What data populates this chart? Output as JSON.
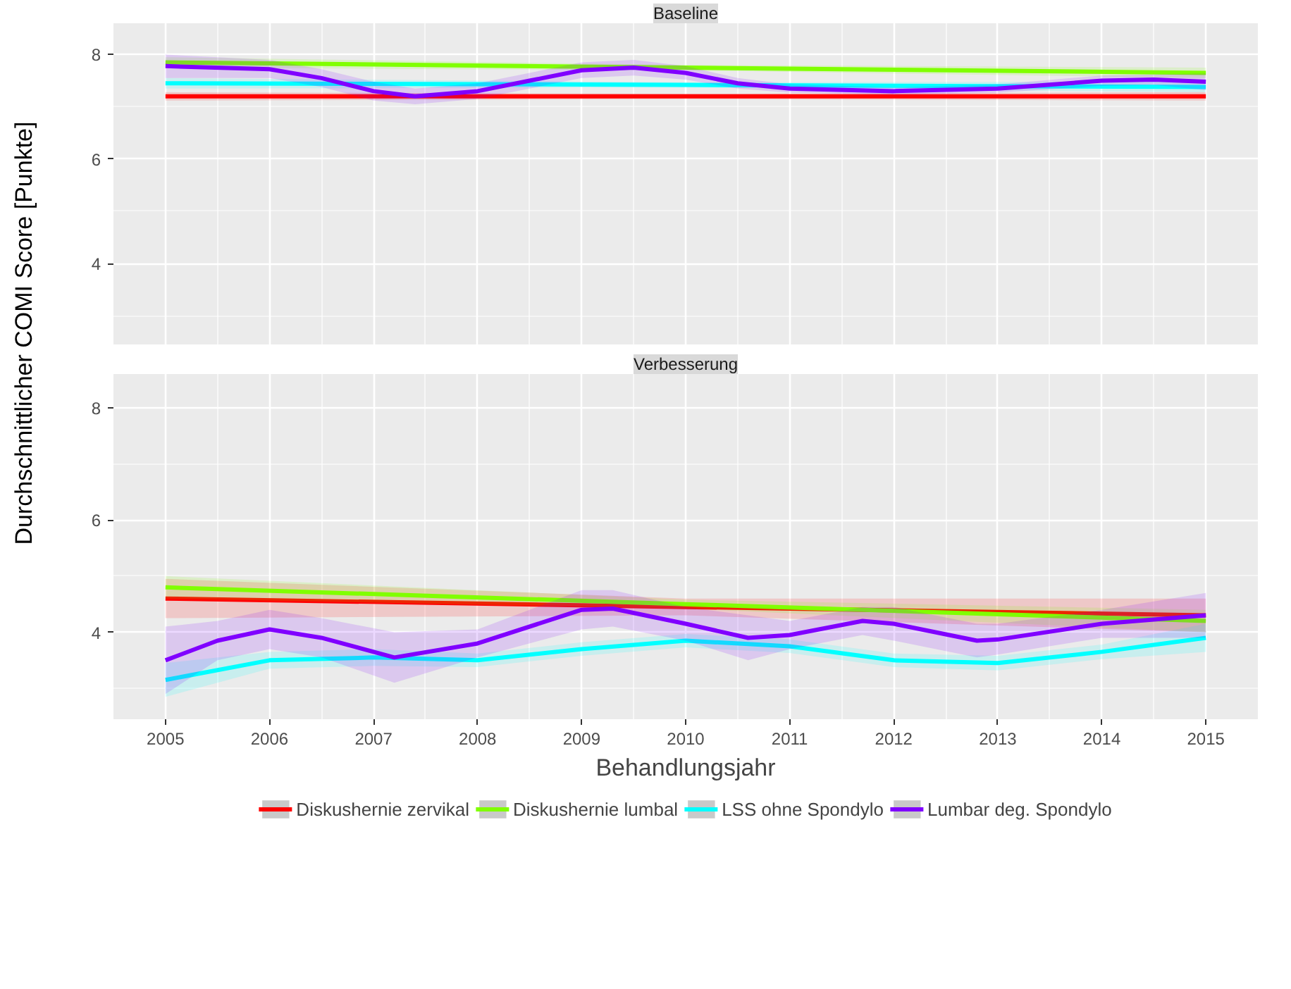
{
  "chart_data": [
    {
      "type": "line",
      "title": "Baseline",
      "ylabel": "Durchschnittlicher COMI Score [Punkte]",
      "xlim": [
        2004.5,
        2015.5
      ],
      "ylim": [
        2.45,
        8.6
      ],
      "xticks": [
        2005,
        2006,
        2007,
        2008,
        2009,
        2010,
        2011,
        2012,
        2013,
        2014,
        2015
      ],
      "yticks": [
        4,
        6,
        8
      ],
      "tick_labels": "y",
      "grid": true,
      "legend": false,
      "line_style": "solid",
      "marker": "none",
      "series": [
        {
          "color": "#ff0000",
          "x": [
            2005,
            2010,
            2015
          ],
          "values": [
            7.2,
            7.2,
            7.2
          ],
          "lower": [
            7.12,
            7.15,
            7.12
          ],
          "upper": [
            7.28,
            7.25,
            7.28
          ]
        },
        {
          "color": "#80ff00",
          "x": [
            2005,
            2010,
            2015
          ],
          "values": [
            7.85,
            7.75,
            7.65
          ],
          "lower": [
            7.75,
            7.7,
            7.55
          ],
          "upper": [
            7.95,
            7.8,
            7.75
          ]
        },
        {
          "color": "#00ffff",
          "x": [
            2005,
            2010,
            2015
          ],
          "values": [
            7.45,
            7.42,
            7.38
          ],
          "lower": [
            7.35,
            7.37,
            7.28
          ],
          "upper": [
            7.55,
            7.47,
            7.48
          ]
        },
        {
          "color": "#8000ff",
          "x": [
            2005,
            2006,
            2006.5,
            2007,
            2007.4,
            2008,
            2008.5,
            2009,
            2009.5,
            2010,
            2010.5,
            2011,
            2012,
            2013,
            2014,
            2014.5,
            2015
          ],
          "values": [
            7.78,
            7.72,
            7.55,
            7.3,
            7.2,
            7.3,
            7.5,
            7.7,
            7.75,
            7.65,
            7.45,
            7.35,
            7.3,
            7.35,
            7.5,
            7.52,
            7.48
          ],
          "lower": [
            7.55,
            7.55,
            7.38,
            7.12,
            7.05,
            7.15,
            7.35,
            7.55,
            7.6,
            7.52,
            7.35,
            7.27,
            7.23,
            7.27,
            7.4,
            7.42,
            7.32
          ],
          "upper": [
            8.0,
            7.9,
            7.72,
            7.48,
            7.35,
            7.45,
            7.65,
            7.85,
            7.9,
            7.78,
            7.55,
            7.43,
            7.37,
            7.43,
            7.6,
            7.62,
            7.64
          ]
        }
      ]
    },
    {
      "type": "line",
      "title": "Verbesserung",
      "xlabel": "Behandlungsjahr",
      "xlim": [
        2004.5,
        2015.5
      ],
      "ylim": [
        2.45,
        8.6
      ],
      "xticks": [
        2005,
        2006,
        2007,
        2008,
        2009,
        2010,
        2011,
        2012,
        2013,
        2014,
        2015
      ],
      "yticks": [
        4,
        6,
        8
      ],
      "grid": true,
      "legend": "bottom",
      "line_style": "solid",
      "marker": "none",
      "series": [
        {
          "name": "Diskushernie zervikal",
          "color": "#ff0000",
          "x": [
            2005,
            2010,
            2015
          ],
          "values": [
            4.6,
            4.45,
            4.3
          ],
          "lower": [
            4.25,
            4.3,
            4.0
          ],
          "upper": [
            4.95,
            4.6,
            4.6
          ]
        },
        {
          "name": "Diskushernie lumbal",
          "color": "#80ff00",
          "x": [
            2005,
            2010,
            2015
          ],
          "values": [
            4.8,
            4.5,
            4.2
          ],
          "lower": [
            4.6,
            4.42,
            4.0
          ],
          "upper": [
            5.0,
            4.58,
            4.4
          ]
        },
        {
          "name": "LSS ohne Spondylo",
          "color": "#00ffff",
          "x": [
            2005,
            2006,
            2007,
            2008,
            2009,
            2010,
            2011,
            2012,
            2013,
            2014,
            2015
          ],
          "values": [
            3.15,
            3.5,
            3.55,
            3.5,
            3.7,
            3.85,
            3.75,
            3.5,
            3.45,
            3.65,
            3.9
          ],
          "lower": [
            2.85,
            3.35,
            3.4,
            3.38,
            3.58,
            3.73,
            3.63,
            3.38,
            3.32,
            3.52,
            3.65
          ],
          "upper": [
            3.45,
            3.65,
            3.7,
            3.62,
            3.82,
            3.97,
            3.87,
            3.62,
            3.58,
            3.78,
            4.15
          ]
        },
        {
          "name": "Lumbar deg. Spondylo",
          "color": "#8000ff",
          "x": [
            2005,
            2005.5,
            2006,
            2006.5,
            2007.2,
            2008,
            2009,
            2009.3,
            2010,
            2010.6,
            2011,
            2011.7,
            2012,
            2012.8,
            2013,
            2014,
            2015
          ],
          "values": [
            3.5,
            3.85,
            4.05,
            3.9,
            3.55,
            3.8,
            4.4,
            4.42,
            4.15,
            3.9,
            3.95,
            4.2,
            4.15,
            3.85,
            3.87,
            4.15,
            4.3
          ],
          "lower": [
            2.9,
            3.5,
            3.7,
            3.55,
            3.1,
            3.55,
            4.05,
            4.1,
            3.85,
            3.5,
            3.7,
            3.95,
            3.85,
            3.55,
            3.6,
            3.9,
            3.9
          ],
          "upper": [
            4.1,
            4.2,
            4.4,
            4.25,
            4.0,
            4.05,
            4.75,
            4.75,
            4.45,
            4.3,
            4.2,
            4.45,
            4.45,
            4.15,
            4.15,
            4.4,
            4.7
          ]
        }
      ]
    }
  ]
}
